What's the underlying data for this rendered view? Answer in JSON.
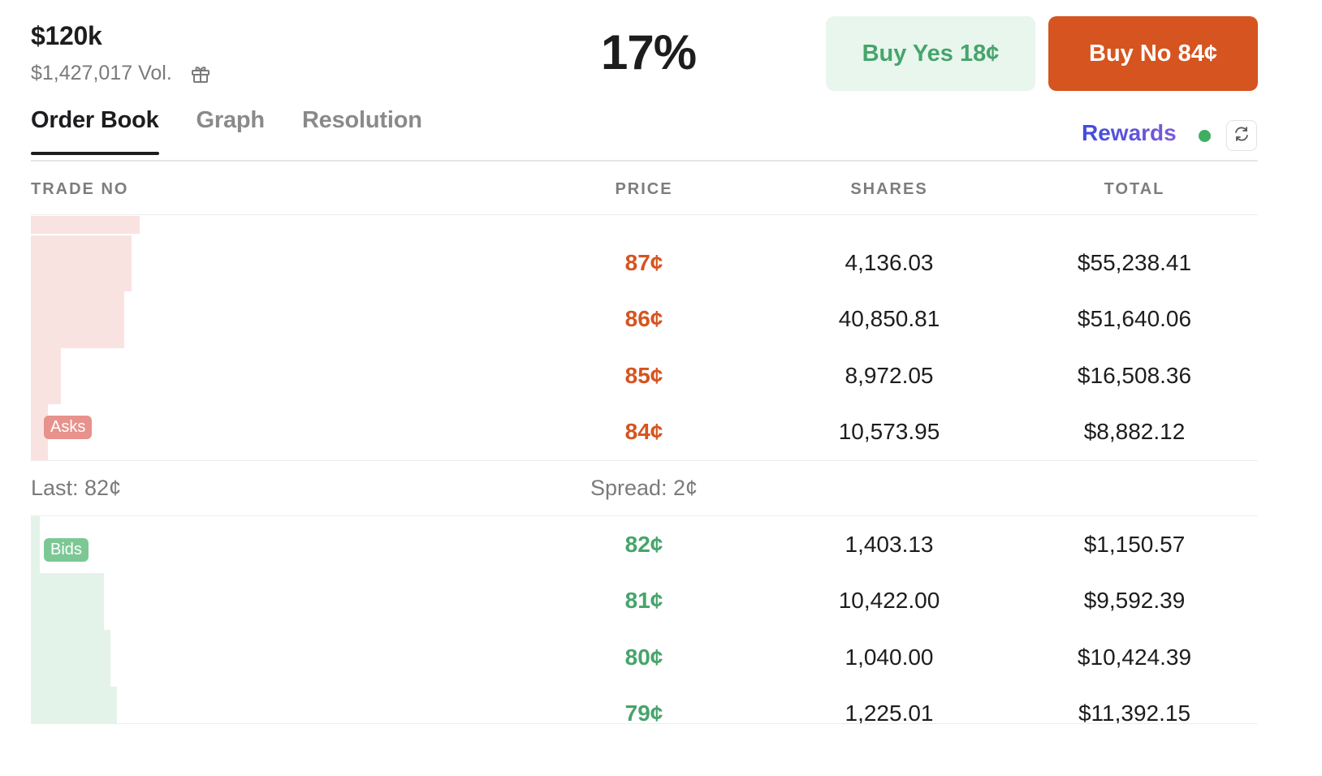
{
  "market": {
    "volume_short": "$120k",
    "volume_full": "$1,427,017 Vol.",
    "probability": "17%"
  },
  "buttons": {
    "buy_yes": "Buy Yes 18¢",
    "buy_no": "Buy No 84¢"
  },
  "tabs": [
    {
      "label": "Order Book",
      "active": true
    },
    {
      "label": "Graph",
      "active": false
    },
    {
      "label": "Resolution",
      "active": false
    }
  ],
  "rewards_label": "Rewards",
  "columns": {
    "trade": "TRADE NO",
    "price": "PRICE",
    "shares": "SHARES",
    "total": "TOTAL"
  },
  "asks": [
    {
      "price": "87¢",
      "shares": "4,136.03",
      "total": "$55,238.41"
    },
    {
      "price": "86¢",
      "shares": "40,850.81",
      "total": "$51,640.06"
    },
    {
      "price": "85¢",
      "shares": "8,972.05",
      "total": "$16,508.36"
    },
    {
      "price": "84¢",
      "shares": "10,573.95",
      "total": "$8,882.12"
    }
  ],
  "asks_badge": "Asks",
  "spread": {
    "last": "Last: 82¢",
    "spread": "Spread: 2¢"
  },
  "bids": [
    {
      "price": "82¢",
      "shares": "1,403.13",
      "total": "$1,150.57"
    },
    {
      "price": "81¢",
      "shares": "10,422.00",
      "total": "$9,592.39"
    },
    {
      "price": "80¢",
      "shares": "1,040.00",
      "total": "$10,424.39"
    },
    {
      "price": "79¢",
      "shares": "1,225.01",
      "total": "$11,392.15"
    }
  ],
  "bids_badge": "Bids",
  "colors": {
    "ask": "#d6541f",
    "bid": "#47a46b",
    "ask_depth": "#f9e3e1",
    "bid_depth": "#e4f3e9"
  },
  "icons": [
    "gift-icon",
    "refresh-icon",
    "live-dot"
  ]
}
